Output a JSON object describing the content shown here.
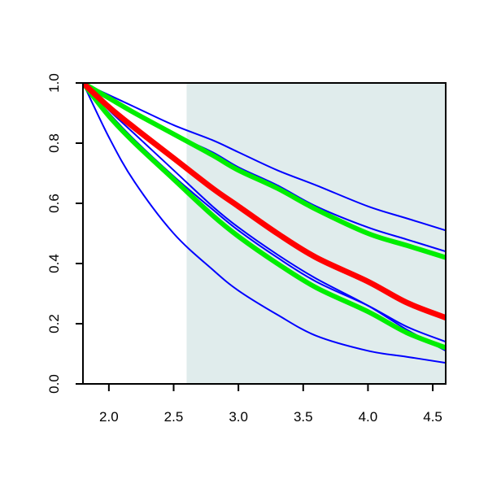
{
  "chart_data": {
    "type": "line",
    "title": "",
    "xlabel": "",
    "ylabel": "",
    "xlim": [
      1.8,
      4.6
    ],
    "ylim": [
      0.0,
      1.0
    ],
    "x_ticks": [
      2.0,
      2.5,
      3.0,
      3.5,
      4.0,
      4.5
    ],
    "x_tick_labels": [
      "2.0",
      "2.5",
      "3.0",
      "3.5",
      "4.0",
      "4.5"
    ],
    "y_ticks": [
      0.0,
      0.2,
      0.4,
      0.6,
      0.8,
      1.0
    ],
    "y_tick_labels": [
      "0.0",
      "0.2",
      "0.4",
      "0.6",
      "0.8",
      "1.0"
    ],
    "grid": false,
    "legend": "none",
    "shaded_region": {
      "x_from": 2.6,
      "x_to": 4.6,
      "color": "#e0ecec"
    },
    "x": [
      1.8,
      2.0,
      2.2,
      2.5,
      2.8,
      3.0,
      3.3,
      3.6,
      4.0,
      4.3,
      4.6
    ],
    "series": [
      {
        "color": "#0000ff",
        "width": 2,
        "values": [
          1.0,
          0.96,
          0.92,
          0.86,
          0.81,
          0.77,
          0.71,
          0.66,
          0.59,
          0.55,
          0.51
        ]
      },
      {
        "color": "#0000ff",
        "width": 2,
        "values": [
          1.0,
          0.95,
          0.9,
          0.83,
          0.77,
          0.72,
          0.66,
          0.59,
          0.52,
          0.48,
          0.44
        ]
      },
      {
        "color": "#0000ff",
        "width": 2,
        "values": [
          1.0,
          0.9,
          0.81,
          0.69,
          0.58,
          0.51,
          0.42,
          0.34,
          0.26,
          0.19,
          0.14
        ]
      },
      {
        "color": "#0000ff",
        "width": 2,
        "values": [
          1.0,
          0.91,
          0.83,
          0.71,
          0.59,
          0.52,
          0.43,
          0.35,
          0.26,
          0.18,
          0.11
        ]
      },
      {
        "color": "#0000ff",
        "width": 2,
        "values": [
          1.0,
          0.82,
          0.67,
          0.5,
          0.38,
          0.31,
          0.23,
          0.16,
          0.11,
          0.09,
          0.07
        ]
      },
      {
        "color": "#00ee00",
        "width": 6,
        "values": [
          1.0,
          0.95,
          0.9,
          0.83,
          0.76,
          0.71,
          0.65,
          0.58,
          0.5,
          0.46,
          0.42
        ]
      },
      {
        "color": "#00ee00",
        "width": 6,
        "values": [
          1.0,
          0.89,
          0.8,
          0.68,
          0.56,
          0.49,
          0.4,
          0.32,
          0.24,
          0.17,
          0.12
        ]
      },
      {
        "color": "#ff0000",
        "width": 7,
        "values": [
          1.0,
          0.92,
          0.85,
          0.75,
          0.65,
          0.59,
          0.5,
          0.42,
          0.34,
          0.27,
          0.22
        ]
      }
    ]
  }
}
